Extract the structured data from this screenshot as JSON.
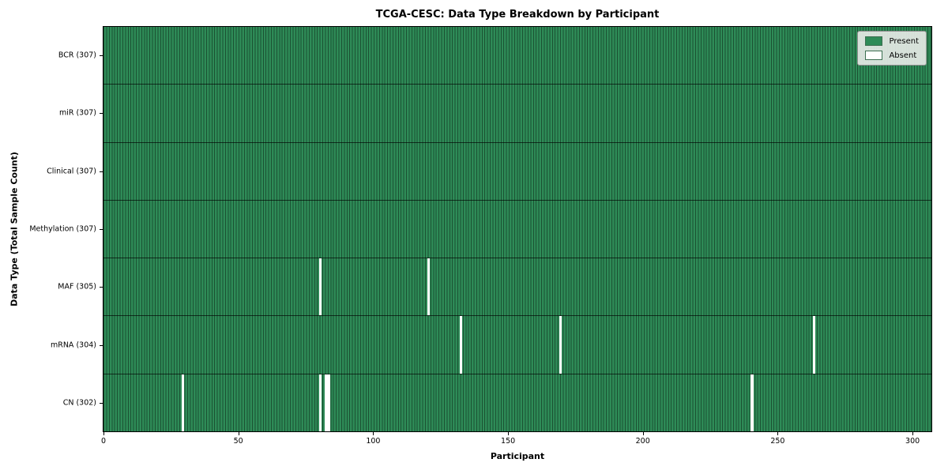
{
  "chart_data": {
    "type": "heatmap",
    "title": "TCGA-CESC: Data Type Breakdown by Participant",
    "xlabel": "Participant",
    "ylabel": "Data Type (Total Sample Count)",
    "n_participants": 307,
    "x_ticks": [
      0,
      50,
      100,
      150,
      200,
      250,
      300
    ],
    "rows": [
      {
        "label": "BCR (307)",
        "total": 307,
        "absent_participants": []
      },
      {
        "label": "miR (307)",
        "total": 307,
        "absent_participants": []
      },
      {
        "label": "Clinical (307)",
        "total": 307,
        "absent_participants": []
      },
      {
        "label": "Methylation (307)",
        "total": 307,
        "absent_participants": []
      },
      {
        "label": "MAF (305)",
        "total": 305,
        "absent_participants": [
          80,
          120
        ]
      },
      {
        "label": "mRNA (304)",
        "total": 304,
        "absent_participants": [
          132,
          169,
          263
        ]
      },
      {
        "label": "CN (302)",
        "total": 302,
        "absent_participants": [
          29,
          80,
          82,
          83,
          240
        ]
      }
    ],
    "legend": [
      {
        "label": "Present",
        "color": "#2e8b57"
      },
      {
        "label": "Absent",
        "color": "#fdfffd"
      }
    ],
    "colors": {
      "present": "#2e8b57",
      "absent": "#ffffff",
      "cell_border": "rgba(0,0,0,0.42)",
      "row_separator": "rgba(0,0,0,0.65)"
    },
    "grid": false,
    "legend_position": "upper right"
  }
}
